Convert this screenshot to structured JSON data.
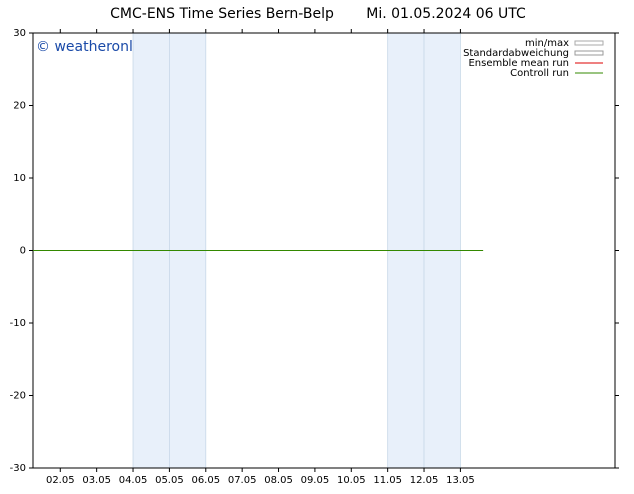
{
  "chart_data": {
    "type": "line",
    "title": "CMC-ENS Time Series Bern-Belp",
    "subtitle": "Mi. 01.05.2024 06 UTC",
    "watermark": "© weatheronline.de",
    "xlim": [
      1.25,
      17.25
    ],
    "xticks": [
      {
        "value": 2,
        "label": "02.05"
      },
      {
        "value": 3,
        "label": "03.05"
      },
      {
        "value": 4,
        "label": "04.05"
      },
      {
        "value": 5,
        "label": "05.05"
      },
      {
        "value": 6,
        "label": "06.05"
      },
      {
        "value": 7,
        "label": "07.05"
      },
      {
        "value": 8,
        "label": "08.05"
      },
      {
        "value": 9,
        "label": "09.05"
      },
      {
        "value": 10,
        "label": "10.05"
      },
      {
        "value": 11,
        "label": "11.05"
      },
      {
        "value": 12,
        "label": "12.05"
      },
      {
        "value": 13,
        "label": "13.05"
      }
    ],
    "ylim": [
      -30,
      30
    ],
    "yticks": [
      30,
      20,
      10,
      0,
      -10,
      -20,
      -30
    ],
    "shaded_ranges": [
      [
        4,
        5
      ],
      [
        5,
        6
      ],
      [
        11,
        12
      ],
      [
        12,
        13
      ]
    ],
    "shade_color": "#e8f0fa",
    "series": [
      {
        "name": "min/max",
        "color": "#aaaaaa",
        "x": [],
        "values": []
      },
      {
        "name": "Standardabweichung",
        "color": "#999999",
        "x": [],
        "values": []
      },
      {
        "name": "Ensemble mean run",
        "color": "#dd0000",
        "x": [],
        "values": []
      },
      {
        "name": "Controll run",
        "color": "#338800",
        "x": [
          1.25,
          13.625
        ],
        "values": [
          0,
          0
        ]
      }
    ]
  }
}
